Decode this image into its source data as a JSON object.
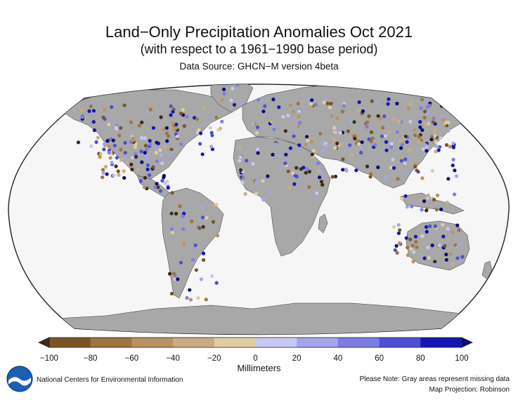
{
  "title": "Land−Only Precipitation Anomalies Oct 2021",
  "subtitle": "(with respect to a 1961−1990 base period)",
  "source": "Data Source: GHCN−M version 4beta",
  "colorbar": {
    "ticks": [
      "−100",
      "−80",
      "−60",
      "−40",
      "−20",
      "0",
      "20",
      "40",
      "60",
      "80",
      "100"
    ],
    "colors": [
      "#7a5523",
      "#9e7441",
      "#b89260",
      "#cbac82",
      "#e2cca4",
      "#c8c8f4",
      "#a4a4ee",
      "#7c7ce6",
      "#4e4ed8",
      "#1616b6"
    ],
    "under_color": "#3f2a10",
    "over_color": "#0a0a78",
    "units": "Millimeters"
  },
  "map": {
    "projection_name": "Robinson",
    "ocean_color": "#f6f6f6",
    "land_missing_color": "#a8a8a8"
  },
  "footer": {
    "org": "National Centers for Environmental Information",
    "logo_icon": "noaa-logo-icon",
    "note": "Please Note: Gray areas represent missing data",
    "projection": "Map Projection: Robinson"
  }
}
